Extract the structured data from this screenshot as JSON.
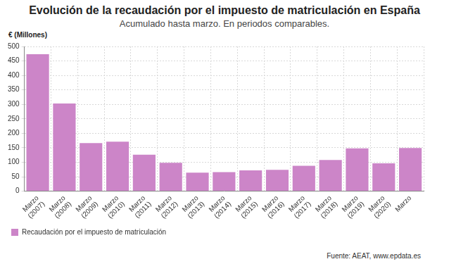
{
  "chart_data": {
    "type": "bar",
    "title": "Evolución de la recaudación por el impuesto de matriculación en España",
    "subtitle": "Acumulado hasta marzo. En periodos comparables.",
    "y_label": "€ (Millones)",
    "source": "Fuente: AEAT, www.epdata.es",
    "categories": [
      "Marzo (2007)",
      "Marzo (2008)",
      "Marzo (2009)",
      "Marzo (2010)",
      "Marzo (2011)",
      "Marzo (2012)",
      "Marzo (2013)",
      "Marzo (2014)",
      "Marzo (2015)",
      "Marzo (2016)",
      "Marzo (2017)",
      "Marzo (2018)",
      "Marzo (2019)",
      "Marzo (2020)",
      "Marzo"
    ],
    "series": [
      {
        "name": "Recaudación por el impuesto de matriculación",
        "color": "#cc85c8",
        "values": [
          473,
          303,
          166,
          171,
          126,
          98,
          64,
          66,
          72,
          74,
          88,
          108,
          148,
          96,
          149
        ]
      }
    ],
    "ylim": [
      0,
      500
    ],
    "yticks": [
      0,
      50,
      100,
      150,
      200,
      250,
      300,
      350,
      400,
      450,
      500
    ],
    "grid": true,
    "legend": "bottom"
  }
}
